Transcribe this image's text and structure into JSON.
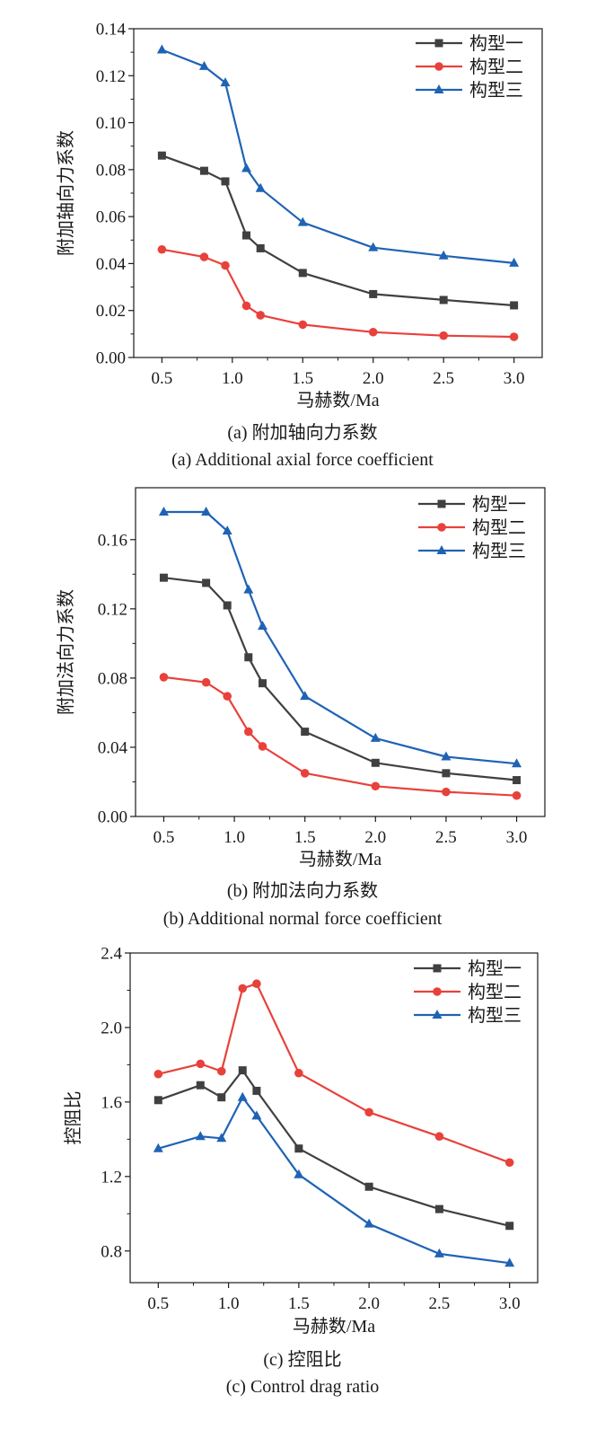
{
  "colors": {
    "series": [
      "#404040",
      "#e8413b",
      "#1f63b5"
    ],
    "axis": "#1a1a1a",
    "background": "#ffffff"
  },
  "chart_data": [
    {
      "type": "line",
      "x": [
        0.5,
        0.8,
        0.95,
        1.1,
        1.2,
        1.5,
        2.0,
        2.5,
        3.0
      ],
      "xlabel": "马赫数/Ma",
      "ylabel": "附加轴向力系数",
      "xticks": [
        "0.5",
        "1.0",
        "1.5",
        "2.0",
        "2.5",
        "3.0"
      ],
      "yticks": [
        "0.00",
        "0.02",
        "0.04",
        "0.06",
        "0.08",
        "0.10",
        "0.12",
        "0.14"
      ],
      "xlim": [
        0.3,
        3.2
      ],
      "ylim": [
        0,
        0.14
      ],
      "grid": false,
      "legend_position": "top-right",
      "series": [
        {
          "name": "构型一",
          "marker": "square",
          "values": [
            0.086,
            0.0795,
            0.075,
            0.052,
            0.0465,
            0.036,
            0.027,
            0.0245,
            0.0222
          ]
        },
        {
          "name": "构型二",
          "marker": "circle",
          "values": [
            0.046,
            0.0428,
            0.0392,
            0.022,
            0.018,
            0.014,
            0.0108,
            0.0093,
            0.0088
          ]
        },
        {
          "name": "构型三",
          "marker": "triangle",
          "values": [
            0.131,
            0.124,
            0.117,
            0.0805,
            0.072,
            0.0575,
            0.0468,
            0.0433,
            0.0402
          ]
        }
      ],
      "caption_zh": "(a) 附加轴向力系数",
      "caption_en": "(a) Additional axial force coefficient"
    },
    {
      "type": "line",
      "x": [
        0.5,
        0.8,
        0.95,
        1.1,
        1.2,
        1.5,
        2.0,
        2.5,
        3.0
      ],
      "xlabel": "马赫数/Ma",
      "ylabel": "附加法向力系数",
      "xticks": [
        "0.5",
        "1.0",
        "1.5",
        "2.0",
        "2.5",
        "3.0"
      ],
      "yticks": [
        "0.00",
        "0.04",
        "0.08",
        "0.12",
        "0.16"
      ],
      "xlim": [
        0.3,
        3.2
      ],
      "ylim": [
        0,
        0.19
      ],
      "grid": false,
      "legend_position": "top-right",
      "series": [
        {
          "name": "构型一",
          "marker": "square",
          "values": [
            0.138,
            0.135,
            0.122,
            0.092,
            0.077,
            0.049,
            0.031,
            0.025,
            0.021
          ]
        },
        {
          "name": "构型二",
          "marker": "circle",
          "values": [
            0.0805,
            0.0775,
            0.0695,
            0.049,
            0.0405,
            0.025,
            0.0175,
            0.0142,
            0.0121
          ]
        },
        {
          "name": "构型三",
          "marker": "triangle",
          "values": [
            0.176,
            0.176,
            0.165,
            0.131,
            0.11,
            0.0695,
            0.0452,
            0.0345,
            0.0305
          ]
        }
      ],
      "caption_zh": "(b) 附加法向力系数",
      "caption_en": "(b) Additional normal force coefficient"
    },
    {
      "type": "line",
      "x": [
        0.5,
        0.8,
        0.95,
        1.1,
        1.2,
        1.5,
        2.0,
        2.5,
        3.0
      ],
      "xlabel": "马赫数/Ma",
      "ylabel": "控阻比",
      "xticks": [
        "0.5",
        "1.0",
        "1.5",
        "2.0",
        "2.5",
        "3.0"
      ],
      "yticks": [
        "0.8",
        "1.2",
        "1.6",
        "2.0",
        "2.4"
      ],
      "xlim": [
        0.3,
        3.2
      ],
      "ylim": [
        0.63,
        2.4
      ],
      "grid": false,
      "legend_position": "top-right",
      "series": [
        {
          "name": "构型一",
          "marker": "square",
          "values": [
            1.61,
            1.69,
            1.625,
            1.77,
            1.66,
            1.35,
            1.145,
            1.025,
            0.935
          ]
        },
        {
          "name": "构型二",
          "marker": "circle",
          "values": [
            1.75,
            1.805,
            1.765,
            2.21,
            2.235,
            1.755,
            1.545,
            1.415,
            1.275
          ]
        },
        {
          "name": "构型三",
          "marker": "triangle",
          "values": [
            1.35,
            1.415,
            1.405,
            1.625,
            1.525,
            1.21,
            0.945,
            0.785,
            0.735
          ]
        }
      ],
      "caption_zh": "(c) 控阻比",
      "caption_en": "(c) Control drag ratio"
    }
  ]
}
